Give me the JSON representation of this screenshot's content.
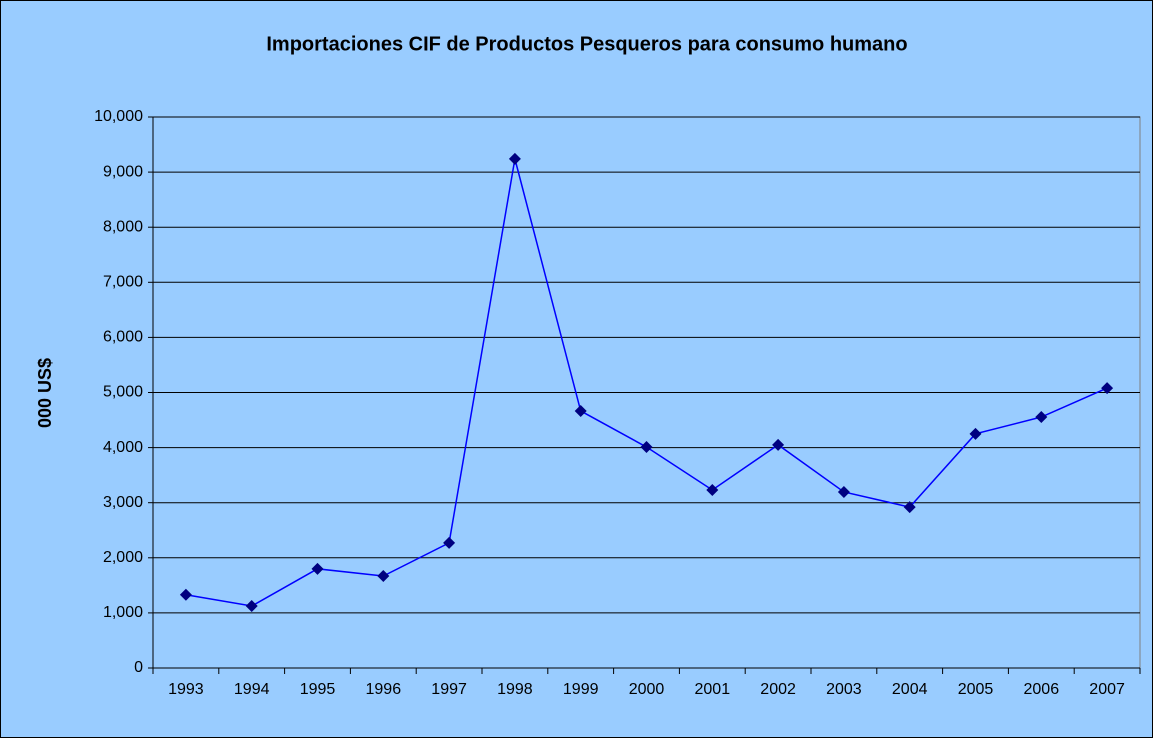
{
  "chart_data": {
    "type": "line",
    "title": "Importaciones CIF de Productos Pesqueros para consumo humano",
    "y_label": "000 US$",
    "categories": [
      "1993",
      "1994",
      "1995",
      "1996",
      "1997",
      "1998",
      "1999",
      "2000",
      "2001",
      "2002",
      "2003",
      "2004",
      "2005",
      "2006",
      "2007"
    ],
    "values": [
      1330,
      1125,
      1800,
      1670,
      2270,
      9240,
      4665,
      4010,
      3230,
      4050,
      3195,
      2920,
      4250,
      4555,
      5080
    ],
    "color": "#0000ff",
    "marker_color": "#000080",
    "ylim": [
      0,
      10000
    ],
    "yticks": [
      0,
      {
        "value": 1000,
        "label": "1,000"
      },
      {
        "value": 2000,
        "label": "2,000"
      },
      {
        "value": 3000,
        "label": "3,000"
      },
      {
        "value": 4000,
        "label": "4,000"
      },
      {
        "value": 5000,
        "label": "5,000"
      },
      {
        "value": 6000,
        "label": "6,000"
      },
      {
        "value": 7000,
        "label": "7,000"
      },
      {
        "value": 8000,
        "label": "8,000"
      },
      {
        "value": 9000,
        "label": "9,000"
      },
      {
        "value": 10000,
        "label": "10,000"
      }
    ],
    "grid": true
  }
}
